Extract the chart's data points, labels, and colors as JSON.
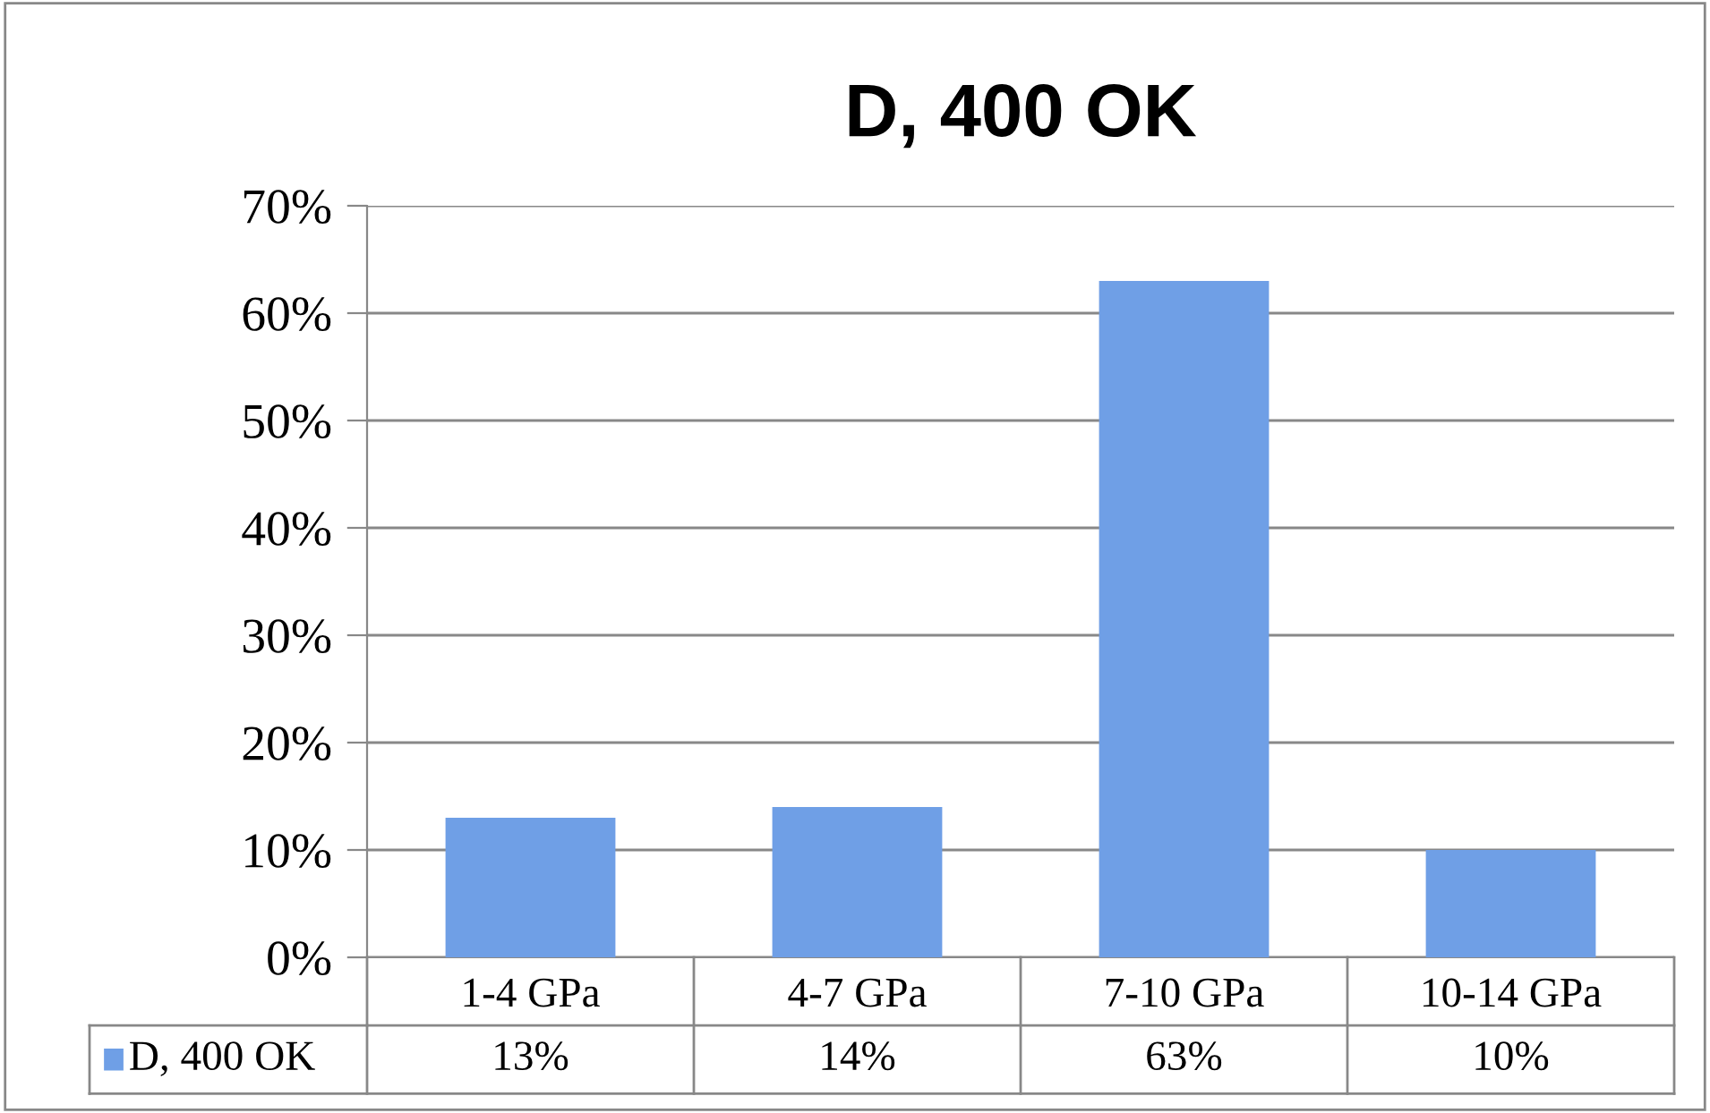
{
  "chart_data": {
    "type": "bar",
    "title": "D, 400 OK",
    "categories": [
      "1-4 GPa",
      "4-7 GPa",
      "7-10 GPa",
      "10-14 GPa"
    ],
    "series": [
      {
        "name": "D, 400 OK",
        "color": "#6f9fe6",
        "values": [
          13,
          14,
          63,
          10
        ],
        "value_labels": [
          "13%",
          "14%",
          "63%",
          "10%"
        ]
      }
    ],
    "ylim": [
      0,
      70
    ],
    "yticks": [
      {
        "value": 0,
        "label": "0%"
      },
      {
        "value": 10,
        "label": "10%"
      },
      {
        "value": 20,
        "label": "20%"
      },
      {
        "value": 30,
        "label": "30%"
      },
      {
        "value": 40,
        "label": "40%"
      },
      {
        "value": 50,
        "label": "50%"
      },
      {
        "value": 60,
        "label": "60%"
      },
      {
        "value": 70,
        "label": "70%"
      }
    ],
    "grid": "y",
    "legend": "bottom"
  }
}
